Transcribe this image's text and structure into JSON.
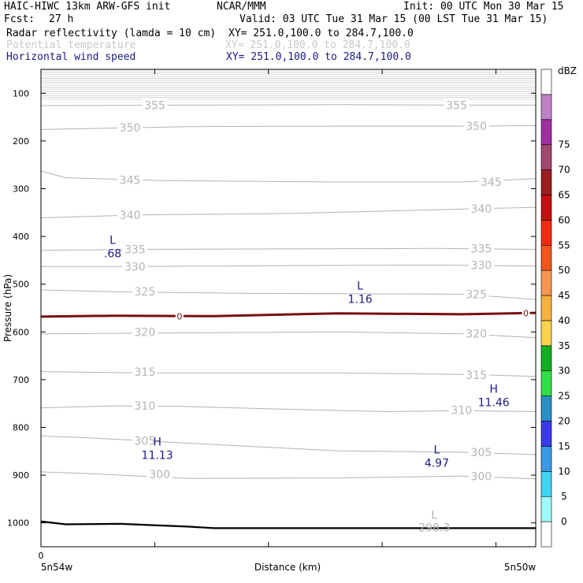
{
  "header": {
    "model": "HAIC-HIWC 13km ARW-GFS init",
    "center": "NCAR/MMM",
    "init": "Init: 00 UTC Mon 30 Mar 15",
    "fcst_label": "Fcst:",
    "fcst_value": "27 h",
    "valid": "Valid: 03 UTC Tue 31 Mar 15 (00 LST Tue 31 Mar 15)",
    "fields": [
      {
        "name": "Radar reflectivity (lamda = 10 cm)",
        "xy": "XY= 251.0,100.0 to 284.7,100.0",
        "color": "#000000"
      },
      {
        "name": "Potential temperature",
        "xy": "XY= 251.0,100.0 to 284.7,100.0",
        "color": "#c8c8c8"
      },
      {
        "name": "Horizontal wind speed",
        "xy": "XY= 251.0,100.0 to 284.7,100.0",
        "color": "#1a1a80"
      }
    ]
  },
  "chart_data": {
    "type": "line",
    "xlabel": "Distance (km)",
    "ylabel": "Pressure (hPa)",
    "x_start_label": "5n54w",
    "x_end_label": "5n50w",
    "x_zero_label": "0",
    "ylim": [
      1050,
      50
    ],
    "y_ticks": [
      100,
      200,
      300,
      400,
      500,
      600,
      700,
      800,
      900,
      1000
    ],
    "x_range": [
      0,
      1
    ],
    "theta_contours": [
      {
        "level": 300,
        "points": [
          [
            0,
            893
          ],
          [
            0.1,
            897
          ],
          [
            0.3,
            907
          ],
          [
            0.6,
            906
          ],
          [
            0.85,
            902
          ],
          [
            1.0,
            908
          ]
        ],
        "labels": [
          {
            "x": 0.24,
            "y": 898,
            "text": "300"
          },
          {
            "x": 0.89,
            "y": 902,
            "text": "300"
          }
        ]
      },
      {
        "level": 305,
        "points": [
          [
            0,
            818
          ],
          [
            0.1,
            822
          ],
          [
            0.35,
            836
          ],
          [
            0.6,
            849
          ],
          [
            0.85,
            852
          ],
          [
            1.0,
            857
          ]
        ],
        "labels": [
          {
            "x": 0.21,
            "y": 828,
            "text": "305"
          },
          {
            "x": 0.89,
            "y": 852,
            "text": "305"
          }
        ]
      },
      {
        "level": 310,
        "points": [
          [
            0,
            759
          ],
          [
            0.15,
            755
          ],
          [
            0.28,
            756
          ],
          [
            0.5,
            762
          ],
          [
            0.7,
            767
          ],
          [
            0.85,
            765
          ],
          [
            1.0,
            767
          ]
        ],
        "labels": [
          {
            "x": 0.21,
            "y": 755,
            "text": "310"
          },
          {
            "x": 0.85,
            "y": 764,
            "text": "310"
          }
        ]
      },
      {
        "level": 315,
        "points": [
          [
            0,
            683
          ],
          [
            0.2,
            686
          ],
          [
            0.4,
            686
          ],
          [
            0.6,
            686
          ],
          [
            0.85,
            689
          ],
          [
            1.0,
            693
          ]
        ],
        "labels": [
          {
            "x": 0.21,
            "y": 684,
            "text": "315"
          },
          {
            "x": 0.88,
            "y": 690,
            "text": "315"
          }
        ]
      },
      {
        "level": 320,
        "points": [
          [
            0,
            604
          ],
          [
            0.3,
            602
          ],
          [
            0.6,
            600
          ],
          [
            0.85,
            604
          ],
          [
            1.0,
            612
          ]
        ],
        "labels": [
          {
            "x": 0.21,
            "y": 600,
            "text": "320"
          },
          {
            "x": 0.88,
            "y": 604,
            "text": "320"
          }
        ]
      },
      {
        "level": 325,
        "points": [
          [
            0,
            512
          ],
          [
            0.15,
            516
          ],
          [
            0.4,
            519
          ],
          [
            0.6,
            520
          ],
          [
            0.85,
            521
          ],
          [
            1.0,
            532
          ]
        ],
        "labels": [
          {
            "x": 0.21,
            "y": 515,
            "text": "325"
          },
          {
            "x": 0.88,
            "y": 521,
            "text": "325"
          }
        ]
      },
      {
        "level": 330,
        "points": [
          [
            0,
            463
          ],
          [
            0.2,
            463
          ],
          [
            0.5,
            461
          ],
          [
            0.8,
            460
          ],
          [
            1.0,
            462
          ]
        ],
        "labels": [
          {
            "x": 0.19,
            "y": 463,
            "text": "330"
          },
          {
            "x": 0.89,
            "y": 460,
            "text": "330"
          }
        ]
      },
      {
        "level": 335,
        "points": [
          [
            0,
            429
          ],
          [
            0.2,
            427
          ],
          [
            0.5,
            426
          ],
          [
            0.8,
            425
          ],
          [
            1.0,
            427
          ]
        ],
        "labels": [
          {
            "x": 0.19,
            "y": 427,
            "text": "335"
          },
          {
            "x": 0.89,
            "y": 425,
            "text": "335"
          }
        ]
      },
      {
        "level": 340,
        "points": [
          [
            0,
            361
          ],
          [
            0.2,
            355
          ],
          [
            0.5,
            352
          ],
          [
            0.8,
            344
          ],
          [
            1.0,
            339
          ]
        ],
        "labels": [
          {
            "x": 0.18,
            "y": 355,
            "text": "340"
          },
          {
            "x": 0.89,
            "y": 342,
            "text": "340"
          }
        ]
      },
      {
        "level": 345,
        "points": [
          [
            0,
            263
          ],
          [
            0.05,
            277
          ],
          [
            0.25,
            283
          ],
          [
            0.6,
            286
          ],
          [
            0.85,
            286
          ],
          [
            1.0,
            279
          ]
        ],
        "labels": [
          {
            "x": 0.18,
            "y": 282,
            "text": "345"
          },
          {
            "x": 0.91,
            "y": 286,
            "text": "345"
          }
        ]
      },
      {
        "level": 350,
        "points": [
          [
            0,
            176
          ],
          [
            0.3,
            170
          ],
          [
            0.6,
            169
          ],
          [
            0.85,
            169
          ],
          [
            1.0,
            168
          ]
        ],
        "labels": [
          {
            "x": 0.18,
            "y": 172,
            "text": "350"
          },
          {
            "x": 0.88,
            "y": 169,
            "text": "350"
          }
        ]
      },
      {
        "level": 355,
        "points": [
          [
            0,
            126
          ],
          [
            0.3,
            125
          ],
          [
            0.6,
            124
          ],
          [
            0.85,
            125
          ],
          [
            1.0,
            125
          ]
        ],
        "labels": [
          {
            "x": 0.23,
            "y": 125,
            "text": "355"
          },
          {
            "x": 0.84,
            "y": 125,
            "text": "355"
          }
        ]
      }
    ],
    "dbz_zero_line": {
      "points": [
        [
          0,
          568
        ],
        [
          0.15,
          566
        ],
        [
          0.35,
          567
        ],
        [
          0.6,
          561
        ],
        [
          0.85,
          563
        ],
        [
          1.0,
          560
        ]
      ],
      "labels": [
        {
          "x": 0.28,
          "y": 567,
          "text": "0"
        },
        {
          "x": 0.98,
          "y": 561,
          "text": "0"
        }
      ]
    },
    "terrain_line": {
      "points": [
        [
          0,
          997
        ],
        [
          0.05,
          1003
        ],
        [
          0.16,
          1002
        ],
        [
          0.3,
          1008
        ],
        [
          0.35,
          1011
        ],
        [
          0.6,
          1011
        ],
        [
          1.0,
          1011
        ]
      ]
    },
    "wind_labels": [
      {
        "type": "L",
        "value": ".68",
        "x": 0.145,
        "y": 440
      },
      {
        "type": "L",
        "value": "1.16",
        "x": 0.645,
        "y": 536
      },
      {
        "type": "H",
        "value": "11.46",
        "x": 0.915,
        "y": 752
      },
      {
        "type": "H",
        "value": "11.13",
        "x": 0.235,
        "y": 863
      },
      {
        "type": "L",
        "value": "4.97",
        "x": 0.8,
        "y": 879
      }
    ],
    "theta_min_label": {
      "type": "L",
      "value": "298.3",
      "x": 0.795,
      "y": 1018
    },
    "colorbar": {
      "unit": "dBZ",
      "levels": [
        "0",
        "5",
        "10",
        "15",
        "20",
        "25",
        "30",
        "35",
        "40",
        "45",
        "50",
        "55",
        "60",
        "65",
        "70",
        "75"
      ],
      "colors": [
        "#ffffff",
        "#9ffbfb",
        "#3fd6f6",
        "#3a98e8",
        "#3a3af0",
        "#2a8fc6",
        "#2fe045",
        "#11b020",
        "#fcd24a",
        "#f6b23c",
        "#f89650",
        "#f5541c",
        "#f72910",
        "#c80f0f",
        "#9b1e1e",
        "#a04870",
        "#a030a0",
        "#c080c8",
        "#ffffff"
      ]
    }
  }
}
